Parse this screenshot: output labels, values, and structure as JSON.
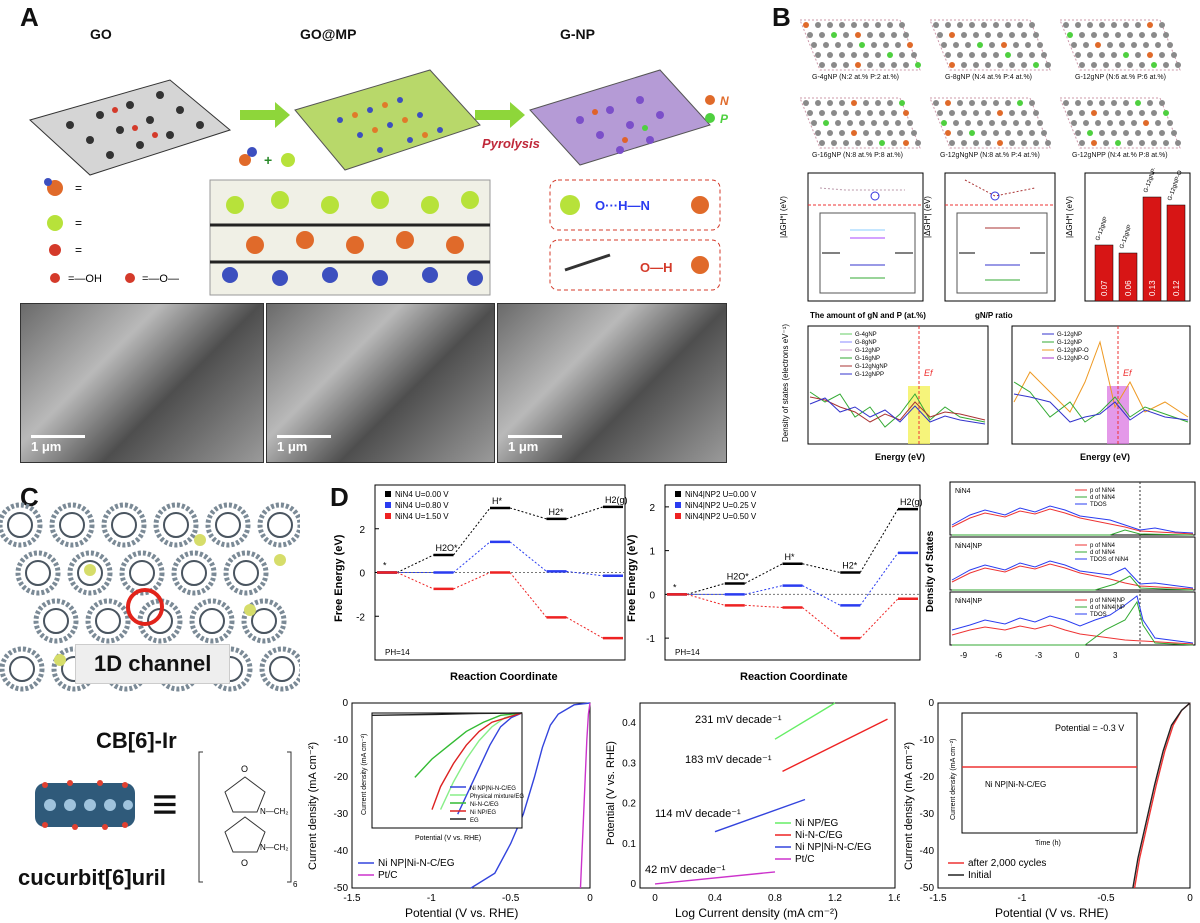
{
  "panels": {
    "a": "A",
    "b": "B",
    "c": "C",
    "d": "D"
  },
  "panelA": {
    "top_labels": [
      "GO",
      "GO@MP",
      "G-NP"
    ],
    "pyrolysis": "Pyrolysis",
    "legend_n": "N",
    "legend_p": "P",
    "legend_oh": "=—OH",
    "legend_o": "=—O—",
    "bond1": "O···H—N",
    "bond2": "O—H",
    "sem_scale": [
      "1 μm",
      "1 μm",
      "1 μm"
    ]
  },
  "panelB": {
    "structures": [
      "G-4gNP (N:2 at.% P:2 at.%)",
      "G-8gNP (N:4 at.% P:4 at.%)",
      "G-12gNP (N:6 at.% P:6 at.%)",
      "G-16gNP (N:8 at.% P:8 at.%)",
      "G-12gNgNP (N:8 at.% P:4 at.%)",
      "G-12gNPP (N:4 at.% P:8 at.%)"
    ],
    "chart1_xlabel": "The amount of gN and P (at.%)",
    "chart1_ylabel": "|ΔGH*| (eV)",
    "chart2_xlabel": "gN/P ratio",
    "chart3_bar_labels": [
      "G-12gNP",
      "G-12gNP",
      "G-12gNP-O",
      "G-12gNP-O"
    ],
    "dos_ylabel": "Density of states (electrons eV⁻¹)",
    "dos_xlabel": "Energy (eV)",
    "dos_ef": "Ef",
    "dos1_legend": [
      "G-4gNP",
      "G-8gNP",
      "G-12gNP",
      "G-16gNP",
      "G-12gNgNP",
      "G-12gNPP"
    ],
    "dos2_legend": [
      "G-12gNP",
      "G-12gNP",
      "G-12gNP-O",
      "G-12gNP-O"
    ]
  },
  "panelC": {
    "channel_label": "1D channel",
    "name1": "CB[6]-Ir",
    "name2": "cucurbit[6]uril",
    "equiv": "≡"
  },
  "panelD": {
    "fe_ylabel": "Free Energy (eV)",
    "fe_xlabel": "Reaction Coordinate",
    "ph": "PH=14",
    "dos_ylabel": "Density of States",
    "dos_labels": [
      "NiN4",
      "NiN4|NP",
      "NiN4|NP"
    ],
    "dos_legend1": [
      "p of NiN4",
      "d of NiN4",
      "TDOS"
    ],
    "dos_legend2": [
      "p of NiN4",
      "d of NiN4",
      "TDOS of NiN4"
    ],
    "dos_legend3": [
      "p of NiN4|NP",
      "d of NiN4|NP",
      "TDOS"
    ],
    "lsv_xlabel": "Potential (V vs. RHE)",
    "lsv_ylabel": "Current density (mA cm⁻²)",
    "inset_xlabel": "Potential (V vs. RHE)",
    "inset_ylabel": "Current density (mA cm⁻²)",
    "tafel_xlabel": "Log Current density (mA cm⁻²)",
    "tafel_ylabel": "Potential (V vs. RHE)",
    "stab_inset_label": "Potential = -0.3 V",
    "stab_inset_series": "Ni NP|Ni-N-C/EG",
    "stab_inset_xlabel": "Time (h)",
    "stab_inset_ylabel": "Current density (mA cm⁻²)"
  },
  "chart_data": [
    {
      "type": "line",
      "title": "",
      "xlabel": "Reaction Coordinate",
      "ylabel": "Free Energy (eV)",
      "categories": [
        "*",
        "H2O*",
        "H*",
        "H2*",
        "H2(g)"
      ],
      "ylim": [
        -4,
        4
      ],
      "series": [
        {
          "name": "NiN4 U=0.00 V",
          "color": "#000000",
          "values": [
            0,
            0.8,
            2.95,
            2.45,
            3.0
          ]
        },
        {
          "name": "NiN4 U=0.80 V",
          "color": "#2a3cf0",
          "values": [
            0,
            0.0,
            1.4,
            0.05,
            -0.15
          ]
        },
        {
          "name": "NiN4 U=1.50 V",
          "color": "#ee2222",
          "values": [
            0,
            -0.75,
            0.0,
            -2.05,
            -3.0
          ]
        }
      ],
      "annotations": [
        "PH=14"
      ]
    },
    {
      "type": "line",
      "title": "",
      "xlabel": "Reaction Coordinate",
      "ylabel": "Free Energy (eV)",
      "categories": [
        "*",
        "H2O*",
        "H*",
        "H2*",
        "H2(g)"
      ],
      "ylim": [
        -1.5,
        2.5
      ],
      "series": [
        {
          "name": "NiN4|NP2 U=0.00 V",
          "color": "#000000",
          "values": [
            0,
            0.25,
            0.7,
            0.5,
            1.95
          ]
        },
        {
          "name": "NiN4|NP2 U=0.25 V",
          "color": "#2a3cf0",
          "values": [
            0,
            0.0,
            0.2,
            -0.25,
            0.95
          ]
        },
        {
          "name": "NiN4|NP2 U=0.50 V",
          "color": "#ee2222",
          "values": [
            0,
            -0.25,
            -0.3,
            -1.0,
            -0.1
          ]
        }
      ],
      "annotations": [
        "PH=14"
      ]
    },
    {
      "type": "line",
      "title": "",
      "xlabel": "Potential (V vs. RHE)",
      "ylabel": "Current density (mA cm⁻²)",
      "xlim": [
        -1.5,
        0.0
      ],
      "ylim": [
        -50,
        0
      ],
      "series": [
        {
          "name": "Ni NP|Ni-N-C/EG",
          "color": "#3344dd",
          "x": [
            -0.75,
            -0.6,
            -0.5,
            -0.42,
            -0.35,
            -0.3,
            -0.25,
            -0.2,
            -0.1,
            0
          ],
          "values": [
            -50,
            -46,
            -38,
            -30,
            -20,
            -12,
            -6,
            -3,
            -0.5,
            0
          ]
        },
        {
          "name": "Pt/C",
          "color": "#cc33cc",
          "x": [
            -0.06,
            -0.05,
            -0.04,
            -0.03,
            -0.02,
            -0.01,
            0
          ],
          "values": [
            -50,
            -40,
            -30,
            -20,
            -10,
            -3,
            0
          ]
        }
      ]
    },
    {
      "type": "line",
      "title": "",
      "xlabel": "Potential (V vs. RHE)",
      "ylabel": "Current density (mA cm⁻²)",
      "xlim": [
        -0.7,
        0.0
      ],
      "ylim": [
        -25,
        0
      ],
      "series": [
        {
          "name": "Ni NP|Ni-N-C/EG",
          "color": "#3344dd",
          "x": [
            -0.3,
            -0.25,
            -0.2,
            -0.15,
            -0.1,
            -0.05,
            0
          ],
          "values": [
            -22,
            -17,
            -12,
            -7,
            -3,
            -1,
            0
          ]
        },
        {
          "name": "Physical mixture/EG",
          "color": "#88ee88",
          "x": [
            -0.38,
            -0.32,
            -0.26,
            -0.2,
            -0.14,
            -0.08,
            0
          ],
          "values": [
            -21,
            -15,
            -10,
            -6,
            -3,
            -1,
            0
          ]
        },
        {
          "name": "Ni-N-C/EG",
          "color": "#33bb33",
          "x": [
            -0.5,
            -0.42,
            -0.34,
            -0.26,
            -0.18,
            -0.1,
            0
          ],
          "values": [
            -14,
            -10,
            -7,
            -4,
            -2,
            -0.5,
            0
          ]
        },
        {
          "name": "Ni NP/EG",
          "color": "#dd2222",
          "x": [
            -0.42,
            -0.38,
            -0.32,
            -0.26,
            -0.2,
            -0.14,
            0
          ],
          "values": [
            -21,
            -16,
            -11,
            -7,
            -4,
            -2,
            0
          ]
        },
        {
          "name": "EG",
          "color": "#222222",
          "x": [
            -0.7,
            -0.4,
            -0.2,
            0
          ],
          "values": [
            -0.5,
            -0.3,
            -0.1,
            0
          ]
        }
      ]
    },
    {
      "type": "line",
      "title": "",
      "xlabel": "Log Current density (mA cm⁻²)",
      "ylabel": "Potential (V vs. RHE)",
      "xlim": [
        -0.1,
        1.6
      ],
      "ylim": [
        -0.01,
        0.45
      ],
      "series": [
        {
          "name": "Ni NP/EG",
          "color": "#66ee66",
          "x": [
            0.8,
            1.2
          ],
          "values": [
            0.36,
            0.45
          ]
        },
        {
          "name": "Ni-N-C/EG",
          "color": "#ee2222",
          "x": [
            0.85,
            1.55
          ],
          "values": [
            0.28,
            0.41
          ]
        },
        {
          "name": "Ni NP|Ni-N-C/EG",
          "color": "#3344dd",
          "x": [
            0.4,
            1.0
          ],
          "values": [
            0.13,
            0.21
          ]
        },
        {
          "name": "Pt/C",
          "color": "#cc33cc",
          "x": [
            0.0,
            0.8
          ],
          "values": [
            0.0,
            0.03
          ]
        }
      ],
      "annotations": [
        "231 mV decade⁻¹",
        "183 mV decade⁻¹",
        "114 mV decade⁻¹",
        "42 mV decade⁻¹"
      ]
    },
    {
      "type": "line",
      "title": "",
      "xlabel": "Potential (V vs. RHE)",
      "ylabel": "Current density (mA cm⁻²)",
      "xlim": [
        -1.5,
        0.0
      ],
      "ylim": [
        -50,
        0
      ],
      "series": [
        {
          "name": "after 2,000 cycles",
          "color": "#ee3333",
          "x": [
            -0.33,
            -0.3,
            -0.25,
            -0.2,
            -0.15,
            -0.1,
            -0.05,
            0
          ],
          "values": [
            -50,
            -42,
            -32,
            -22,
            -13,
            -6,
            -2,
            0
          ]
        },
        {
          "name": "Initial",
          "color": "#222222",
          "x": [
            -0.34,
            -0.31,
            -0.26,
            -0.21,
            -0.16,
            -0.11,
            -0.05,
            0
          ],
          "values": [
            -50,
            -42,
            -32,
            -22,
            -13,
            -6,
            -2,
            0
          ]
        }
      ]
    },
    {
      "type": "bar",
      "title": "",
      "ylabel": "|ΔGH*| (eV)",
      "categories": [
        "G-12gNP",
        "G-12gNP",
        "G-12gNP-O",
        "G-12gNP-O"
      ],
      "values": [
        0.07,
        0.06,
        0.13,
        0.12
      ],
      "ylim": [
        0,
        0.16
      ]
    }
  ]
}
